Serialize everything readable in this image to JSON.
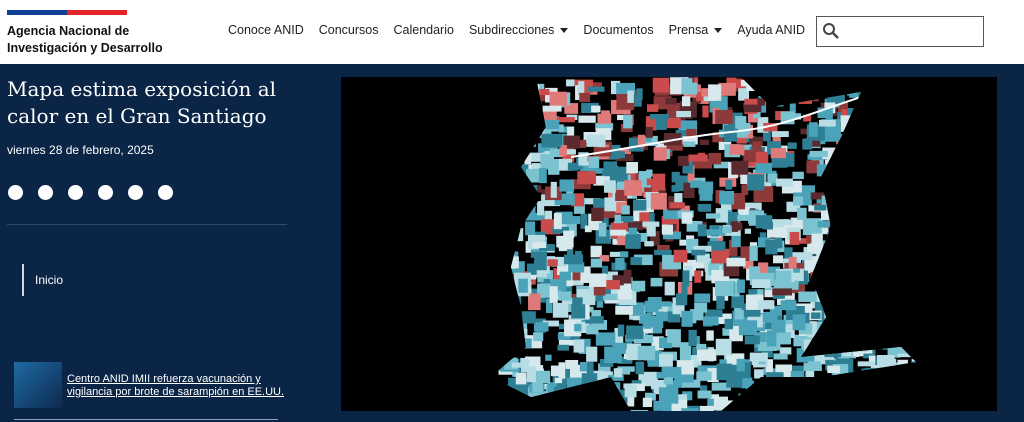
{
  "header": {
    "logo": [
      "Agencia Nacional de",
      "Investigación y Desarrollo"
    ],
    "nav": [
      {
        "label": "Conoce ANID",
        "dropdown": false
      },
      {
        "label": "Concursos",
        "dropdown": false
      },
      {
        "label": "Calendario",
        "dropdown": false
      },
      {
        "label": "Subdirecciones",
        "dropdown": true
      },
      {
        "label": "Documentos",
        "dropdown": false
      },
      {
        "label": "Prensa",
        "dropdown": true
      },
      {
        "label": "Ayuda ANID",
        "dropdown": false
      }
    ]
  },
  "article": {
    "title": "Mapa estima exposición al calor en el Gran Santiago",
    "date": "viernes 28 de febrero, 2025"
  },
  "breadcrumb": [
    "Inicio"
  ],
  "related": {
    "title": "Centro ANID IMII refuerza vacunación y vigilancia por brote de sarampión en EE.UU."
  }
}
